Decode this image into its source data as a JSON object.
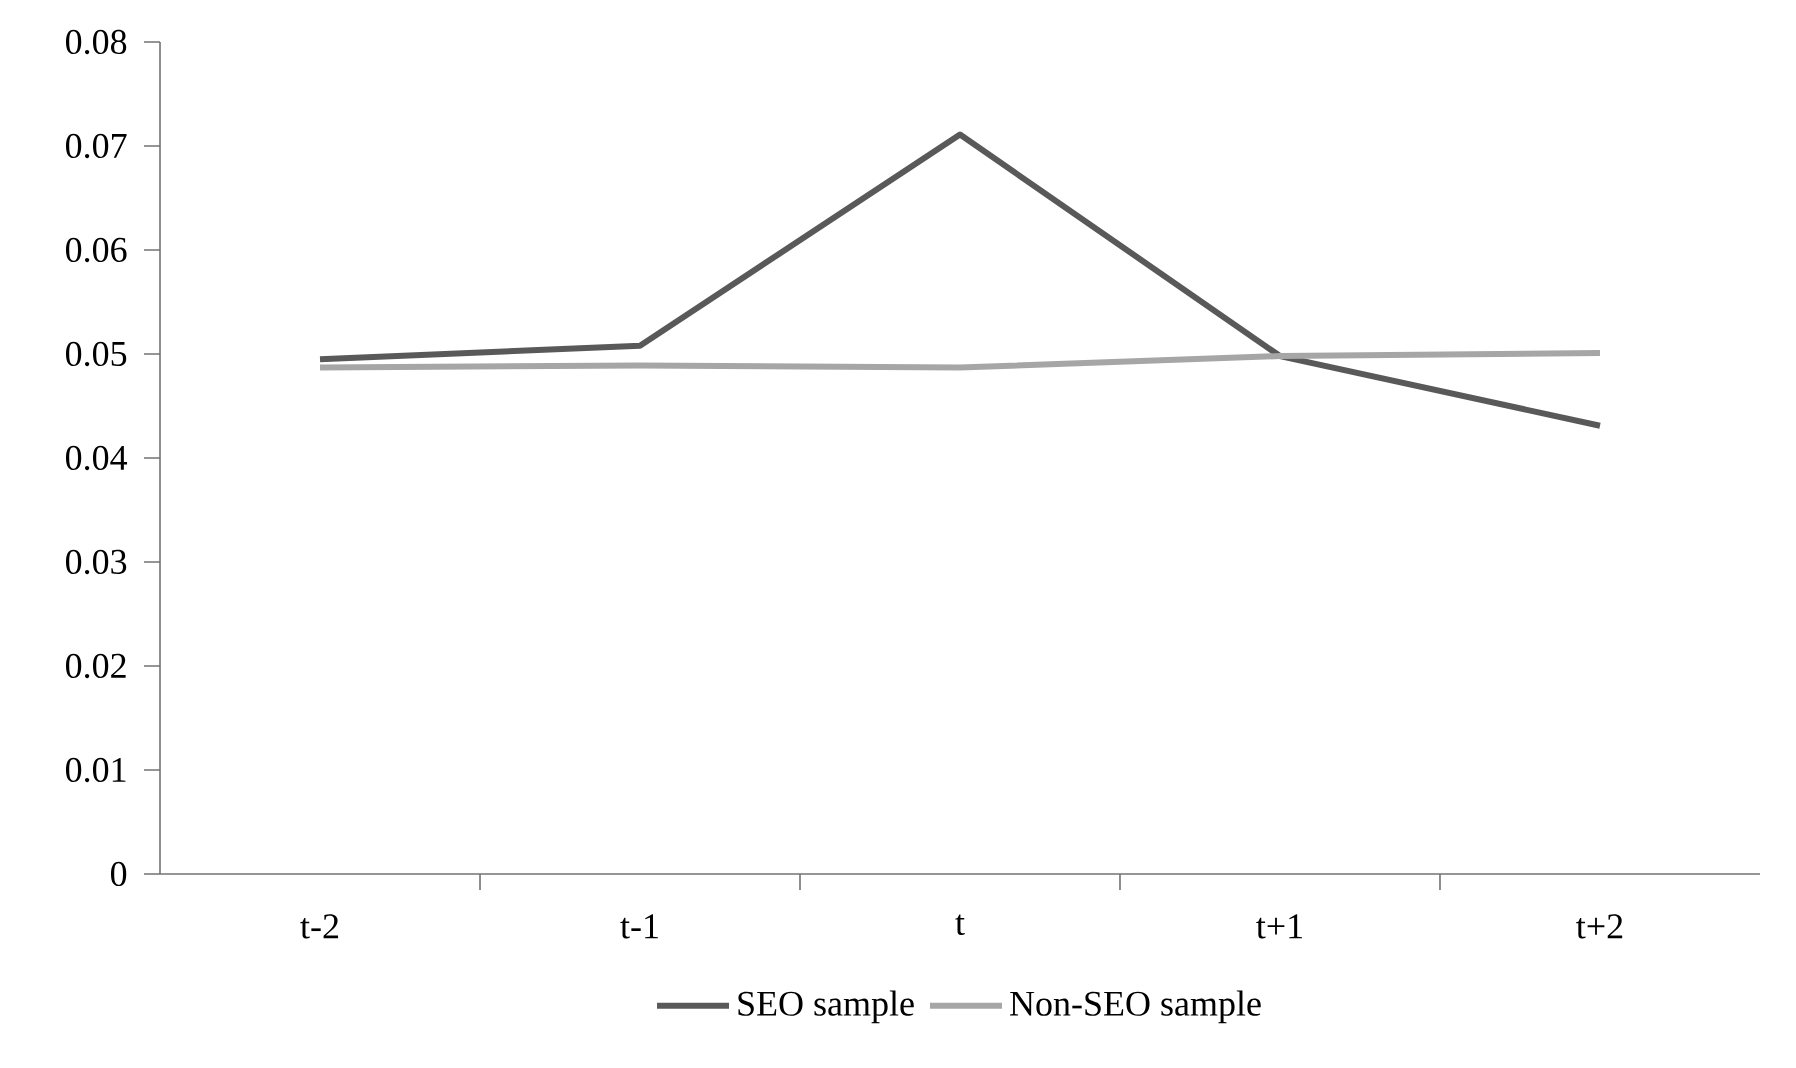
{
  "chart_data": {
    "type": "line",
    "categories": [
      "t-2",
      "t-1",
      "t",
      "t+1",
      "t+2"
    ],
    "series": [
      {
        "name": "SEO sample",
        "color": "#595959",
        "values": [
          0.0495,
          0.0508,
          0.0711,
          0.0498,
          0.0431
        ]
      },
      {
        "name": "Non-SEO sample",
        "color": "#a6a6a6",
        "values": [
          0.0487,
          0.0489,
          0.0487,
          0.0498,
          0.0501
        ]
      }
    ],
    "ylim": [
      0,
      0.08
    ],
    "yticks": [
      0,
      0.01,
      0.02,
      0.03,
      0.04,
      0.05,
      0.06,
      0.07,
      0.08
    ],
    "grid": false,
    "legend": "bottom",
    "marker": "none",
    "line_style": "solid"
  }
}
